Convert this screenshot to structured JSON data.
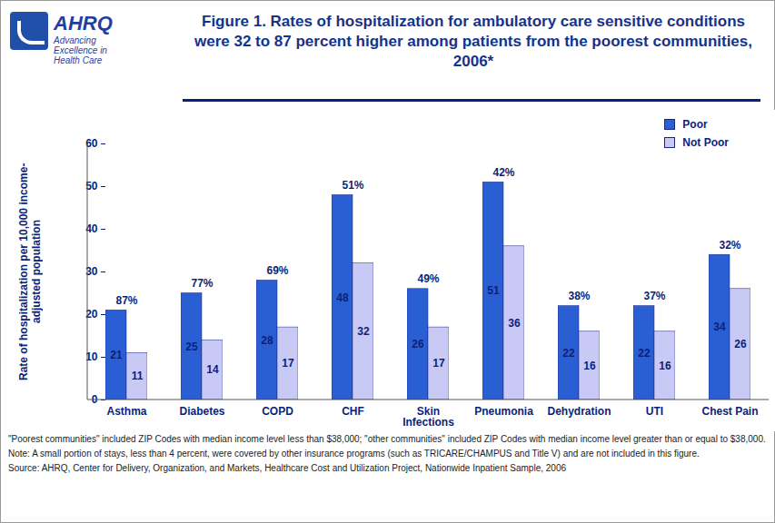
{
  "chart_data": {
    "type": "bar",
    "title": "Figure 1. Rates of hospitalization for ambulatory care sensitive conditions were 32 to 87 percent higher among patients from the poorest communities, 2006*",
    "logo": {
      "name": "AHRQ",
      "tagline": "Advancing Excellence in Health Care"
    },
    "y_label": "Rate of hospitalization per 10,000 income-adjusted population",
    "categories": [
      "Asthma",
      "Diabetes",
      "COPD",
      "CHF",
      "Skin Infections",
      "Pneumonia",
      "Dehydration",
      "UTI",
      "Chest Pain"
    ],
    "series": [
      {
        "name": "Poor",
        "color": "#2a5fd4",
        "values": [
          21,
          25,
          28,
          48,
          26,
          51,
          22,
          22,
          34
        ]
      },
      {
        "name": "Not Poor",
        "color": "#c9c9f5",
        "values": [
          11,
          14,
          17,
          32,
          17,
          36,
          16,
          16,
          26
        ]
      }
    ],
    "annotations": [
      "87%",
      "77%",
      "69%",
      "51%",
      "49%",
      "42%",
      "38%",
      "37%",
      "32%"
    ],
    "ylim": [
      0,
      60
    ],
    "yticks": [
      0,
      10,
      20,
      30,
      40,
      50,
      60
    ],
    "grid": false,
    "legend": "top-right",
    "data_labels": true,
    "notes": [
      "\"Poorest communities\" included ZIP Codes with median income level less than $38,000; \"other communities\" included ZIP Codes with median income level greater than or equal to $38,000.",
      "Note: A small portion of stays, less than 4 percent, were covered by other insurance programs (such as TRICARE/CHAMPUS and Title V) and are not included in this figure.",
      "Source: AHRQ, Center for Delivery, Organization, and Markets, Healthcare Cost and Utilization Project, Nationwide Inpatient Sample, 2006"
    ]
  }
}
